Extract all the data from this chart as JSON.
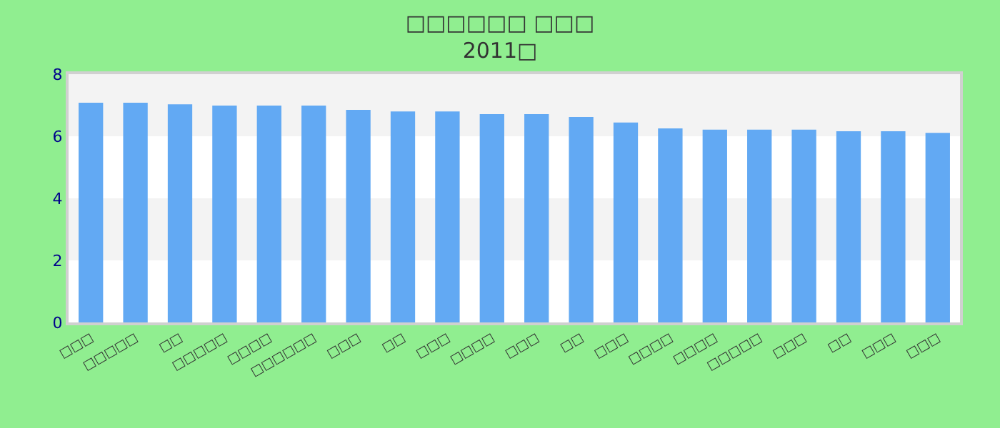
{
  "chart_data": {
    "type": "bar",
    "title": "□□□□□□ □□□",
    "subtitle": "2011□",
    "categories": [
      "□□□",
      "□□□□□",
      "□□",
      "□□□□□",
      "□□□□",
      "□□□□□□",
      "□□□",
      "□□",
      "□□□",
      "□□□□",
      "□□□",
      "□□",
      "□□□",
      "□□□□",
      "□□□□",
      "□□□□□",
      "□□□",
      "□□",
      "□□□",
      "□□□"
    ],
    "values": [
      7.08,
      7.08,
      7.03,
      6.99,
      6.99,
      6.99,
      6.85,
      6.8,
      6.8,
      6.71,
      6.71,
      6.62,
      6.44,
      6.25,
      6.21,
      6.21,
      6.21,
      6.16,
      6.16,
      6.11
    ],
    "color": "#62a9f3",
    "ylim": [
      0,
      8
    ],
    "yticks": [
      0,
      2,
      4,
      6,
      8
    ],
    "bands": [
      {
        "axis": "y",
        "from": 2,
        "to": 4,
        "color": "#f3f3f3"
      },
      {
        "axis": "y",
        "from": 6,
        "to": 8,
        "color": "#f3f3f3"
      }
    ],
    "legend": false
  }
}
